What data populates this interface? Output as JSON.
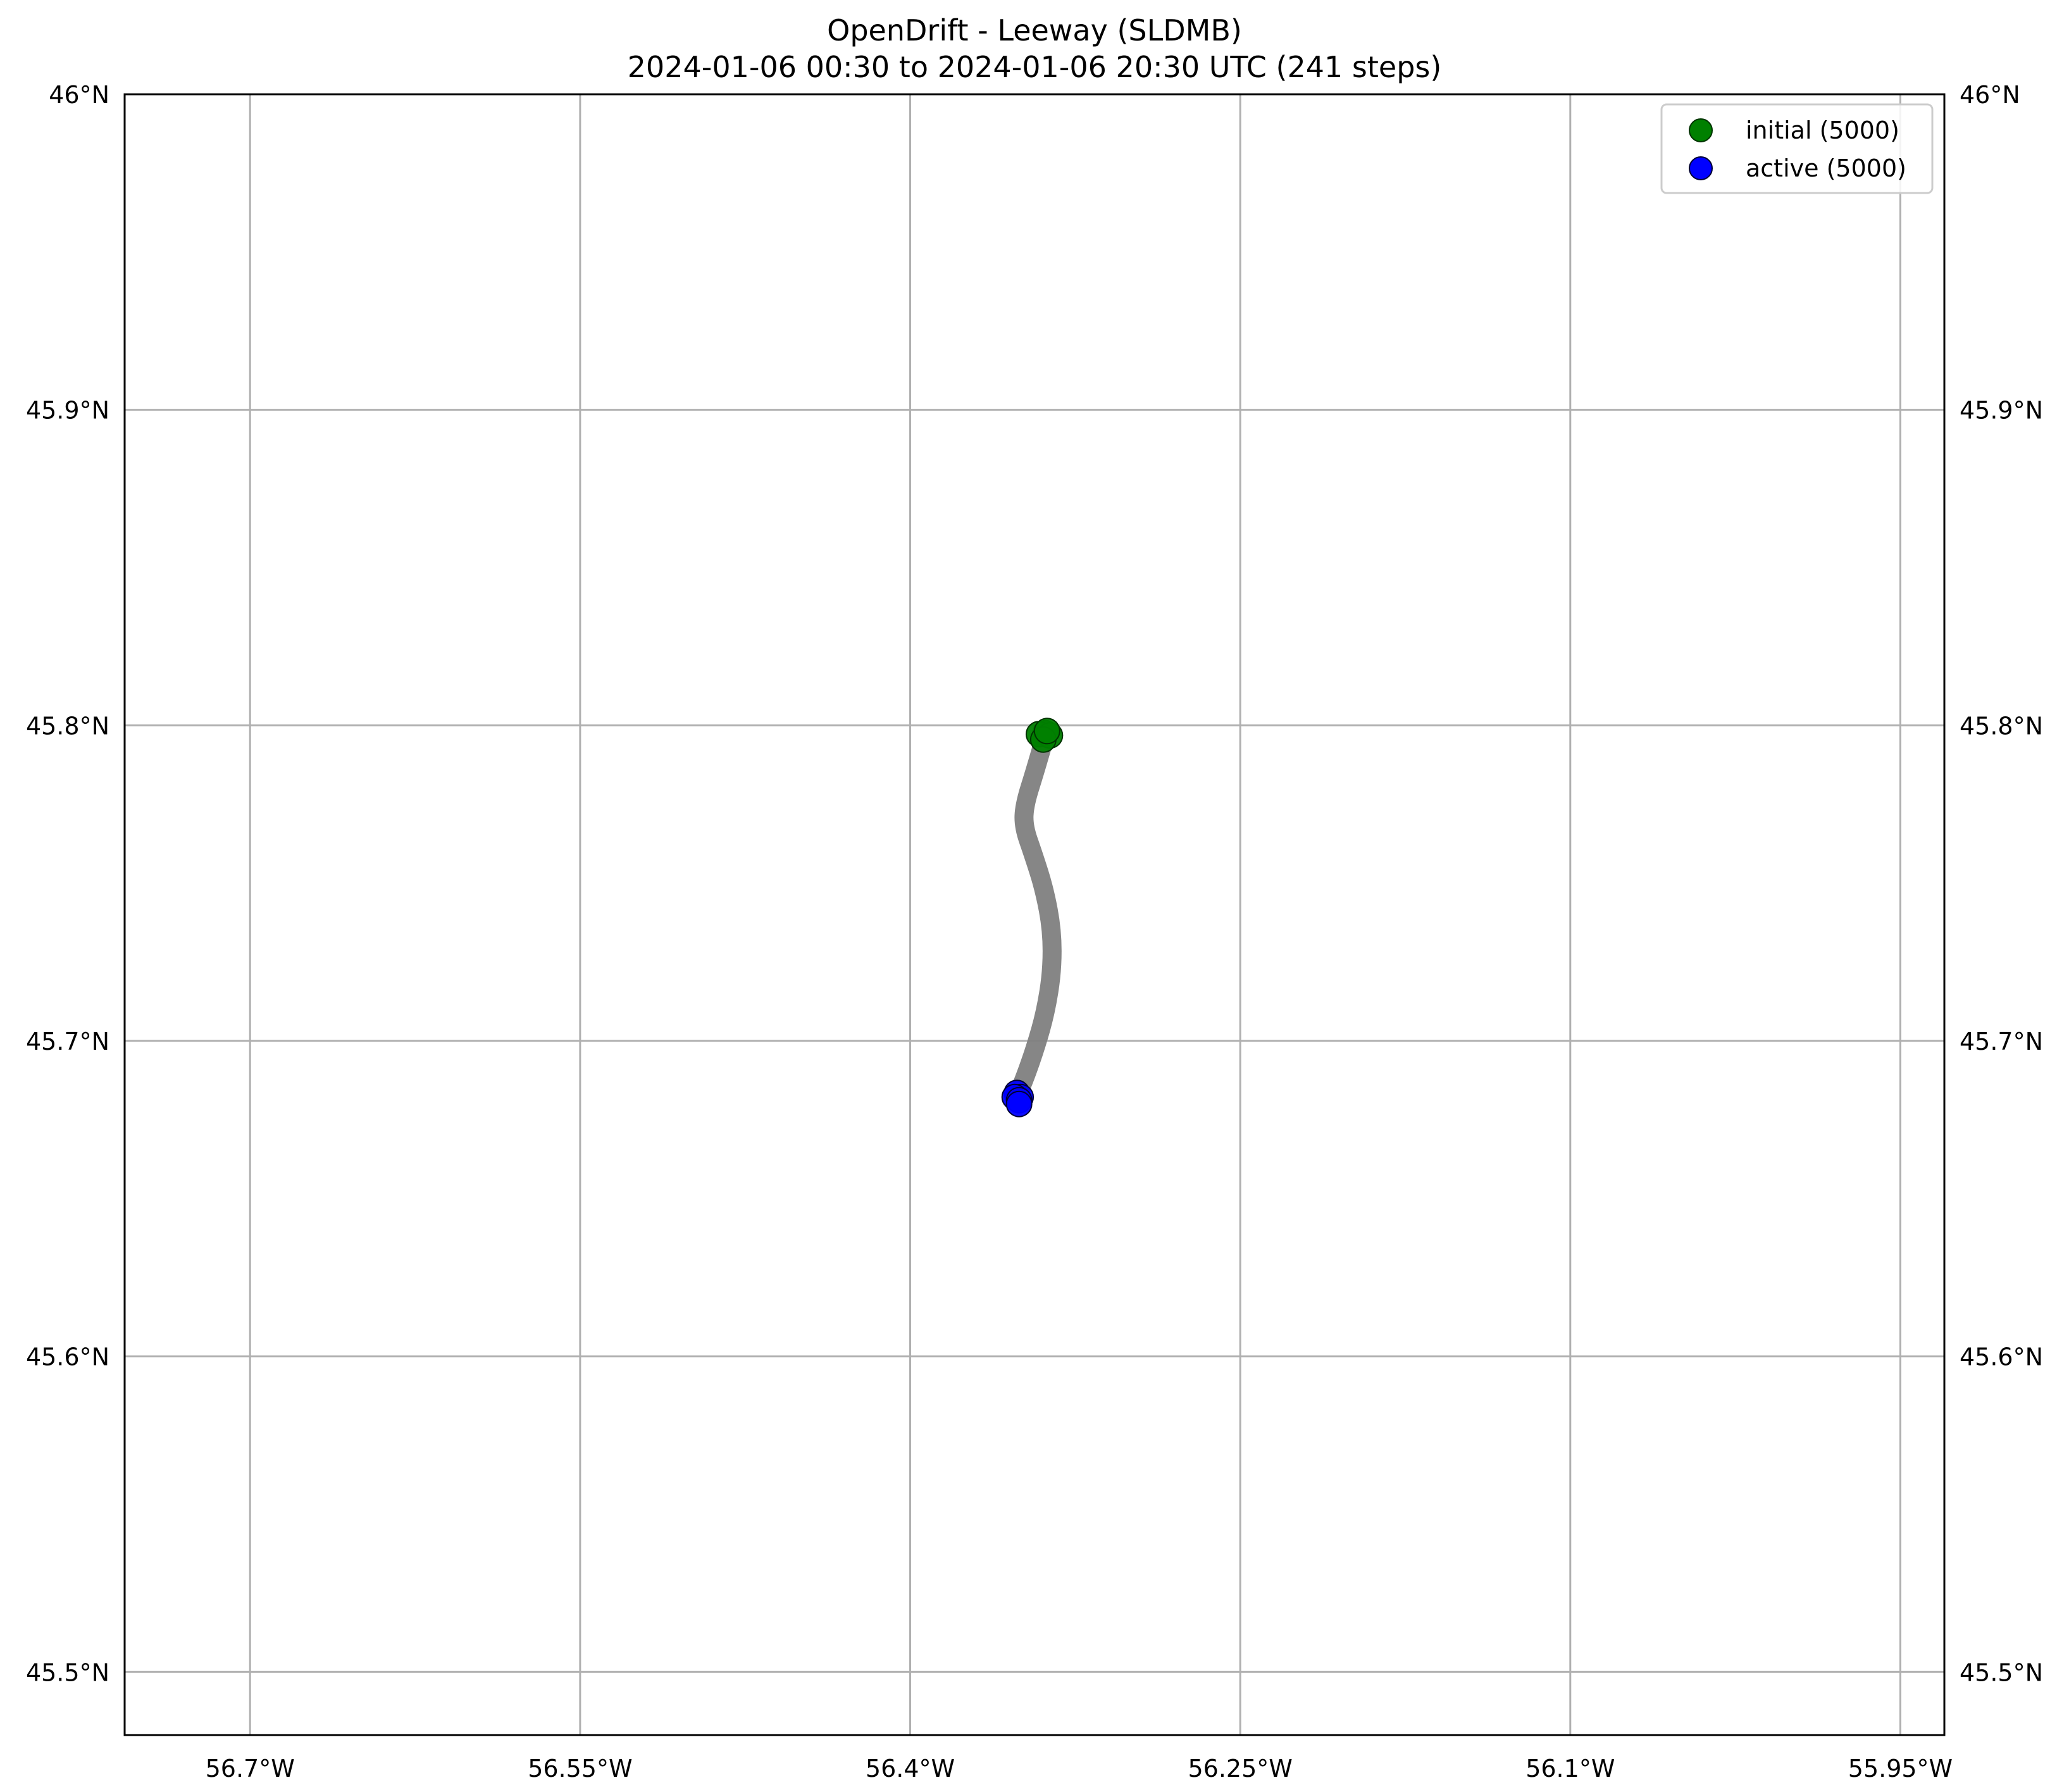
{
  "map": {
    "title": "OpenDrift - Leeway (SLDMB)",
    "subtitle": "2024-01-06 00:30 to 2024-01-06 20:30 UTC (241 steps)"
  },
  "chart_data": {
    "type": "map",
    "projection": "lon-lat",
    "xlim": [
      -56.757,
      -55.93
    ],
    "ylim": [
      45.48,
      46.0
    ],
    "grid": true,
    "x_ticks": [
      {
        "value": -56.7,
        "label": "56.7°W"
      },
      {
        "value": -56.55,
        "label": "56.55°W"
      },
      {
        "value": -56.4,
        "label": "56.4°W"
      },
      {
        "value": -56.25,
        "label": "56.25°W"
      },
      {
        "value": -56.1,
        "label": "56.1°W"
      },
      {
        "value": -55.95,
        "label": "55.95°W"
      }
    ],
    "y_ticks": [
      {
        "value": 46.0,
        "label": "46°N"
      },
      {
        "value": 45.9,
        "label": "45.9°N"
      },
      {
        "value": 45.8,
        "label": "45.8°N"
      },
      {
        "value": 45.7,
        "label": "45.7°N"
      },
      {
        "value": 45.6,
        "label": "45.6°N"
      },
      {
        "value": 45.5,
        "label": "45.5°N"
      }
    ],
    "trajectory": {
      "color": "#808080",
      "points": [
        [
          -56.3385,
          45.797
        ],
        [
          -56.343,
          45.786
        ],
        [
          -56.348,
          45.775
        ],
        [
          -56.3485,
          45.768
        ],
        [
          -56.344,
          45.759
        ],
        [
          -56.339,
          45.748
        ],
        [
          -56.3355,
          45.735
        ],
        [
          -56.3355,
          45.722
        ],
        [
          -56.3385,
          45.709
        ],
        [
          -56.343,
          45.698
        ],
        [
          -56.3475,
          45.689
        ],
        [
          -56.351,
          45.683
        ]
      ]
    },
    "series": [
      {
        "name": "initial (5000)",
        "color": "#008000",
        "points": [
          [
            -56.3385,
            45.7975
          ],
          [
            -56.3415,
            45.7972
          ],
          [
            -56.3365,
            45.7968
          ],
          [
            -56.3395,
            45.7955
          ],
          [
            -56.3378,
            45.7982
          ]
        ]
      },
      {
        "name": "active (5000)",
        "color": "#0000ff",
        "points": [
          [
            -56.3515,
            45.6835
          ],
          [
            -56.3498,
            45.6822
          ],
          [
            -56.3525,
            45.6822
          ],
          [
            -56.3505,
            45.6812
          ],
          [
            -56.3505,
            45.68
          ]
        ]
      }
    ],
    "legend_position": "top-right"
  }
}
